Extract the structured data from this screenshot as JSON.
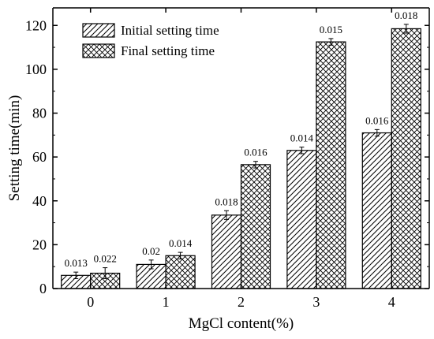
{
  "chart_data": {
    "type": "bar",
    "xlabel": "MgCl content(%)",
    "ylabel": "Setting time(min)",
    "ylim": [
      0,
      128
    ],
    "yticks": [
      0,
      20,
      40,
      60,
      80,
      100,
      120
    ],
    "categories": [
      "0",
      "1",
      "2",
      "3",
      "4"
    ],
    "legend_position": "top-left",
    "series": [
      {
        "name": "Initial setting time",
        "pattern": "diagonal-hatch",
        "values": [
          6,
          11,
          33.5,
          63,
          71
        ],
        "errors": [
          1.5,
          2,
          2,
          1.5,
          1.5
        ],
        "labels": [
          "0.013",
          "0.02",
          "0.018",
          "0.014",
          "0.016"
        ]
      },
      {
        "name": "Final setting time",
        "pattern": "cross-hatch",
        "values": [
          7,
          15,
          56.5,
          112.5,
          118.5
        ],
        "errors": [
          2.5,
          1.5,
          1.5,
          1.5,
          2
        ],
        "labels": [
          "0.022",
          "0.014",
          "0.016",
          "0.015",
          "0.018"
        ]
      }
    ]
  }
}
